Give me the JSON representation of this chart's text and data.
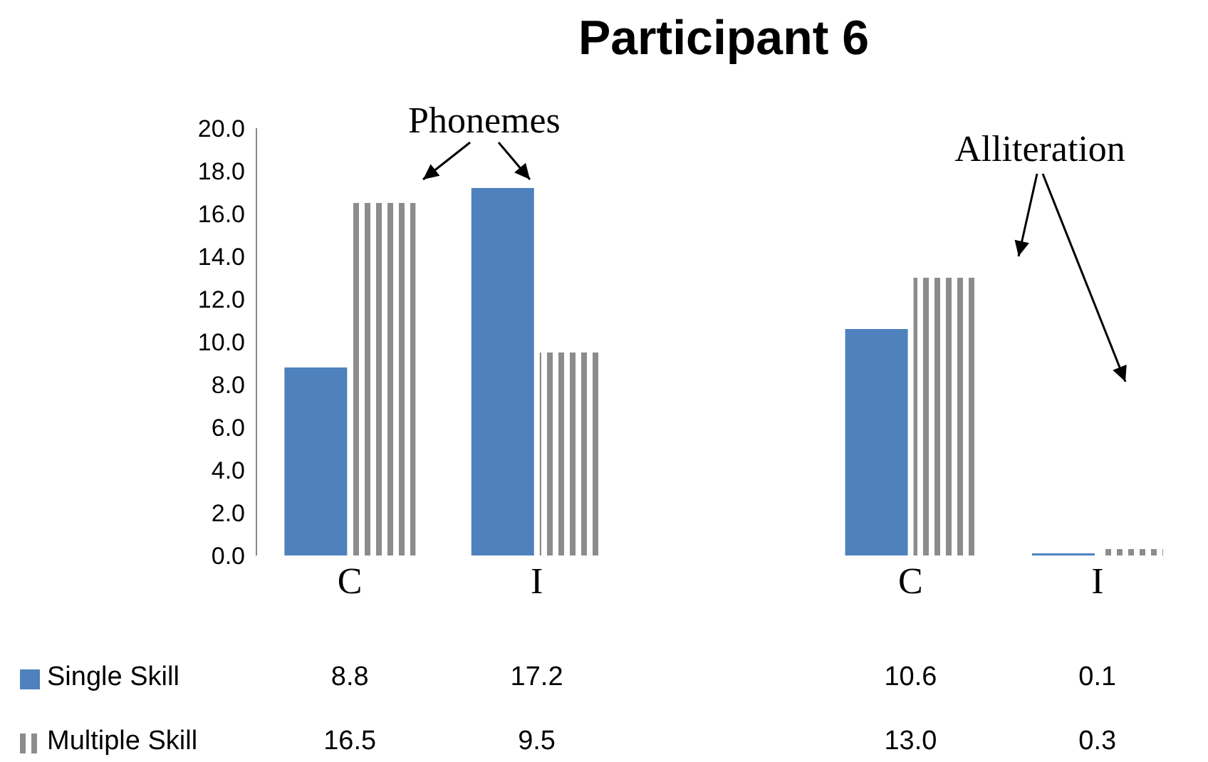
{
  "chart_data": {
    "type": "bar",
    "title": "Participant 6",
    "categories": [
      "C",
      "I",
      null,
      "C",
      "I"
    ],
    "series": [
      {
        "name": "Single Skill",
        "color": "#4f81bd",
        "values": [
          8.8,
          17.2,
          null,
          10.6,
          0.1
        ],
        "value_labels": [
          "8.8",
          "17.2",
          null,
          "10.6",
          "0.1"
        ]
      },
      {
        "name": "Multiple Skill",
        "color": "#8c8c8c",
        "values": [
          16.5,
          9.5,
          null,
          13.0,
          0.3
        ],
        "value_labels": [
          "16.5",
          "9.5",
          null,
          "13.0",
          "0.3"
        ]
      }
    ],
    "ylim": [
      0,
      20
    ],
    "yticks": [
      {
        "value": 0,
        "label": "0.0"
      },
      {
        "value": 2,
        "label": "2.0"
      },
      {
        "value": 4,
        "label": "4.0"
      },
      {
        "value": 6,
        "label": "6.0"
      },
      {
        "value": 8,
        "label": "8.0"
      },
      {
        "value": 10,
        "label": "10.0"
      },
      {
        "value": 12,
        "label": "12.0"
      },
      {
        "value": 14,
        "label": "14.0"
      },
      {
        "value": 16,
        "label": "16.0"
      },
      {
        "value": 18,
        "label": "18.0"
      },
      {
        "value": 20,
        "label": "20.0"
      }
    ],
    "annotations": [
      "Phonemes",
      "Alliteration"
    ],
    "legend": "bottom",
    "grid": false
  }
}
